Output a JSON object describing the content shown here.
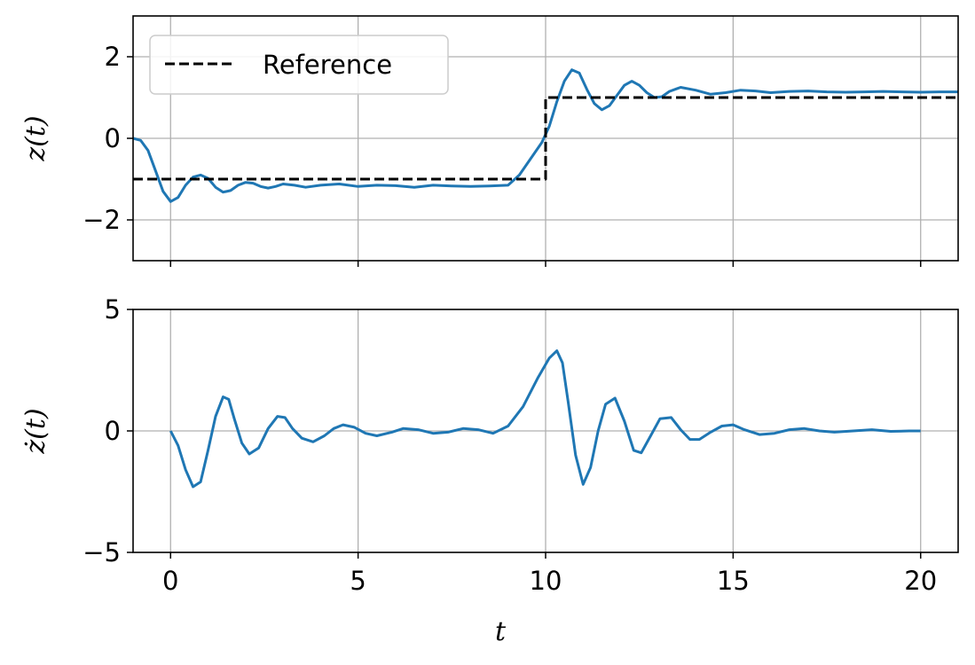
{
  "chart_data": [
    {
      "type": "line",
      "xlim": [
        -1,
        21
      ],
      "ylim": [
        -3,
        3
      ],
      "xlabel": "",
      "ylabel": "z(t)",
      "yticks": [
        -2,
        0,
        2
      ],
      "ytick_labels": [
        "−2",
        "0",
        "2"
      ],
      "xticks": [
        0,
        5,
        10,
        15,
        20
      ],
      "grid": true,
      "legend": {
        "position": "upper-left",
        "entries": [
          "Reference"
        ]
      },
      "series": [
        {
          "name": "",
          "color": "#1f77b4",
          "style": "solid",
          "x": [
            -1,
            -0.8,
            -0.6,
            -0.4,
            -0.2,
            0,
            0.2,
            0.4,
            0.6,
            0.8,
            1.0,
            1.2,
            1.4,
            1.6,
            1.8,
            2.0,
            2.2,
            2.4,
            2.6,
            2.8,
            3.0,
            3.3,
            3.6,
            4.0,
            4.5,
            5.0,
            5.5,
            6.0,
            6.5,
            7.0,
            7.5,
            8.0,
            8.5,
            9.0,
            9.3,
            9.6,
            9.9,
            10.1,
            10.3,
            10.5,
            10.7,
            10.9,
            11.1,
            11.3,
            11.5,
            11.7,
            11.9,
            12.1,
            12.3,
            12.5,
            12.7,
            12.9,
            13.1,
            13.3,
            13.6,
            14.0,
            14.4,
            14.8,
            15.2,
            15.6,
            16.0,
            16.5,
            17.0,
            17.5,
            18.0,
            18.5,
            19.0,
            19.5,
            20.0,
            20.5,
            21.0
          ],
          "y": [
            0.0,
            -0.05,
            -0.3,
            -0.8,
            -1.3,
            -1.55,
            -1.45,
            -1.15,
            -0.95,
            -0.9,
            -0.98,
            -1.2,
            -1.32,
            -1.28,
            -1.15,
            -1.08,
            -1.1,
            -1.18,
            -1.22,
            -1.18,
            -1.12,
            -1.15,
            -1.2,
            -1.15,
            -1.12,
            -1.18,
            -1.15,
            -1.16,
            -1.2,
            -1.15,
            -1.17,
            -1.18,
            -1.17,
            -1.15,
            -0.9,
            -0.5,
            -0.1,
            0.3,
            0.9,
            1.4,
            1.68,
            1.6,
            1.2,
            0.85,
            0.7,
            0.8,
            1.05,
            1.3,
            1.4,
            1.3,
            1.12,
            1.0,
            1.02,
            1.15,
            1.25,
            1.18,
            1.08,
            1.12,
            1.18,
            1.16,
            1.12,
            1.15,
            1.16,
            1.14,
            1.13,
            1.14,
            1.15,
            1.14,
            1.13,
            1.14,
            1.14
          ]
        },
        {
          "name": "Reference",
          "color": "#000000",
          "style": "dashed",
          "x": [
            -1,
            10,
            10,
            21
          ],
          "y": [
            -1,
            -1,
            1,
            1
          ]
        }
      ]
    },
    {
      "type": "line",
      "xlim": [
        -1,
        21
      ],
      "ylim": [
        -5,
        5
      ],
      "xlabel": "t",
      "ylabel": "ż(t)",
      "yticks": [
        -5,
        0,
        5
      ],
      "ytick_labels": [
        "−5",
        "0",
        "5"
      ],
      "xticks": [
        0,
        5,
        10,
        15,
        20
      ],
      "xtick_labels": [
        "0",
        "5",
        "10",
        "15",
        "20"
      ],
      "grid": true,
      "series": [
        {
          "name": "",
          "color": "#1f77b4",
          "style": "solid",
          "x": [
            0,
            0.2,
            0.4,
            0.6,
            0.8,
            1.0,
            1.2,
            1.4,
            1.55,
            1.7,
            1.9,
            2.1,
            2.35,
            2.6,
            2.85,
            3.05,
            3.25,
            3.5,
            3.8,
            4.1,
            4.35,
            4.6,
            4.9,
            5.2,
            5.5,
            5.9,
            6.2,
            6.6,
            7.0,
            7.4,
            7.8,
            8.2,
            8.6,
            9.0,
            9.4,
            9.8,
            10.1,
            10.3,
            10.45,
            10.6,
            10.8,
            11.0,
            11.2,
            11.4,
            11.6,
            11.85,
            12.1,
            12.35,
            12.55,
            12.8,
            13.05,
            13.35,
            13.6,
            13.85,
            14.1,
            14.4,
            14.7,
            15.0,
            15.3,
            15.7,
            16.1,
            16.5,
            16.9,
            17.3,
            17.7,
            18.2,
            18.7,
            19.2,
            19.7,
            20.0
          ],
          "y": [
            0.0,
            -0.6,
            -1.6,
            -2.3,
            -2.1,
            -0.8,
            0.6,
            1.4,
            1.3,
            0.5,
            -0.5,
            -0.95,
            -0.7,
            0.1,
            0.6,
            0.55,
            0.1,
            -0.3,
            -0.45,
            -0.2,
            0.1,
            0.25,
            0.15,
            -0.1,
            -0.2,
            -0.05,
            0.1,
            0.05,
            -0.1,
            -0.05,
            0.1,
            0.05,
            -0.1,
            0.2,
            1.0,
            2.2,
            3.0,
            3.3,
            2.8,
            1.2,
            -1.0,
            -2.2,
            -1.5,
            0.0,
            1.1,
            1.35,
            0.4,
            -0.8,
            -0.9,
            -0.2,
            0.5,
            0.55,
            0.05,
            -0.35,
            -0.35,
            -0.05,
            0.2,
            0.25,
            0.05,
            -0.15,
            -0.1,
            0.05,
            0.1,
            0.0,
            -0.05,
            0.0,
            0.05,
            -0.02,
            0.0,
            0.0
          ]
        }
      ]
    }
  ]
}
